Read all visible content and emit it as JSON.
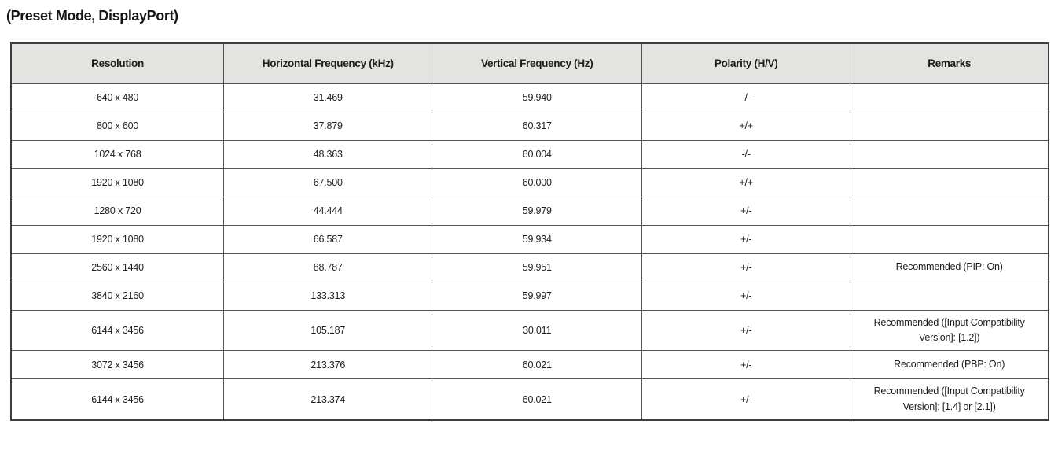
{
  "title": "(Preset Mode, DisplayPort)",
  "table": {
    "headers": {
      "resolution": "Resolution",
      "h_freq": "Horizontal Frequency (kHz)",
      "v_freq": "Vertical Frequency (Hz)",
      "polarity": "Polarity (H/V)",
      "remarks": "Remarks"
    },
    "rows": [
      {
        "resolution": "640 x 480",
        "h_freq": "31.469",
        "v_freq": "59.940",
        "polarity": "-/-",
        "remarks": ""
      },
      {
        "resolution": "800 x 600",
        "h_freq": "37.879",
        "v_freq": "60.317",
        "polarity": "+/+",
        "remarks": ""
      },
      {
        "resolution": "1024 x 768",
        "h_freq": "48.363",
        "v_freq": "60.004",
        "polarity": "-/-",
        "remarks": ""
      },
      {
        "resolution": "1920 x 1080",
        "h_freq": "67.500",
        "v_freq": "60.000",
        "polarity": "+/+",
        "remarks": ""
      },
      {
        "resolution": "1280 x 720",
        "h_freq": "44.444",
        "v_freq": "59.979",
        "polarity": "+/-",
        "remarks": ""
      },
      {
        "resolution": "1920 x 1080",
        "h_freq": "66.587",
        "v_freq": "59.934",
        "polarity": "+/-",
        "remarks": ""
      },
      {
        "resolution": "2560 x 1440",
        "h_freq": "88.787",
        "v_freq": "59.951",
        "polarity": "+/-",
        "remarks": "Recommended (PIP: On)"
      },
      {
        "resolution": "3840 x 2160",
        "h_freq": "133.313",
        "v_freq": "59.997",
        "polarity": "+/-",
        "remarks": ""
      },
      {
        "resolution": "6144 x 3456",
        "h_freq": "105.187",
        "v_freq": "30.011",
        "polarity": "+/-",
        "remarks": "Recommended ([Input Compatibility Version]: [1.2])"
      },
      {
        "resolution": "3072 x 3456",
        "h_freq": "213.376",
        "v_freq": "60.021",
        "polarity": "+/-",
        "remarks": "Recommended (PBP: On)"
      },
      {
        "resolution": "6144 x 3456",
        "h_freq": "213.374",
        "v_freq": "60.021",
        "polarity": "+/-",
        "remarks": "Recommended ([Input Compatibility Version]: [1.4] or [2.1])"
      }
    ]
  },
  "colors": {
    "header_bg": "#e3e3e2",
    "border": "#555555",
    "outer_border": "#3e3e3e",
    "text": "#1d1d1b",
    "page_bg": "#ffffff"
  }
}
